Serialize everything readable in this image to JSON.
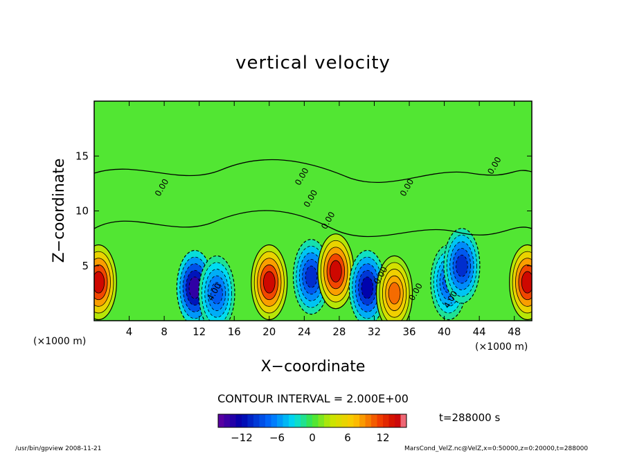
{
  "chart_data": {
    "type": "contour",
    "title": "vertical velocity",
    "xlabel": "X−coordinate",
    "ylabel": "Z−coordinate",
    "x_unit": "(×1000 m)",
    "y_unit": "(×1000 m)",
    "xlim": [
      0,
      50
    ],
    "ylim": [
      0,
      20
    ],
    "xticks": [
      4,
      8,
      12,
      16,
      20,
      24,
      28,
      32,
      36,
      40,
      44,
      48
    ],
    "yticks": [
      5,
      10,
      15
    ],
    "contour_labels": [
      "0.00",
      "0.00",
      "0.00",
      "0.00",
      "0.00",
      "0.00",
      "0.00",
      "4.00",
      "4.00",
      "0.00"
    ],
    "contour_interval": "CONTOUR INTERVAL = 2.000E+00",
    "colorbar": {
      "min": -16,
      "max": 16,
      "ticks": [
        "−12",
        "−6",
        "0",
        "6",
        "12"
      ],
      "tick_values": [
        -12,
        -6,
        0,
        6,
        12
      ]
    },
    "time": "t=288000 s",
    "cells": [
      {
        "x": 0.5,
        "z": 3.5,
        "w": 14
      },
      {
        "x": 11.5,
        "z": 3.0,
        "w": -14
      },
      {
        "x": 14.0,
        "z": 2.5,
        "w": -8
      },
      {
        "x": 20.0,
        "z": 3.5,
        "w": 14
      },
      {
        "x": 24.8,
        "z": 4.0,
        "w": -10
      },
      {
        "x": 27.6,
        "z": 4.5,
        "w": 14
      },
      {
        "x": 31.2,
        "z": 3.0,
        "w": -12
      },
      {
        "x": 34.3,
        "z": 2.5,
        "w": 10
      },
      {
        "x": 40.5,
        "z": 3.5,
        "w": -8
      },
      {
        "x": 42.0,
        "z": 5.0,
        "w": -10
      },
      {
        "x": 49.5,
        "z": 3.5,
        "w": 14
      }
    ]
  },
  "footer": {
    "left": "/usr/bin/gpview   2008-11-21",
    "right": "MarsCond_VelZ.nc@VelZ,x=0:50000,z=0:20000,t=288000"
  }
}
